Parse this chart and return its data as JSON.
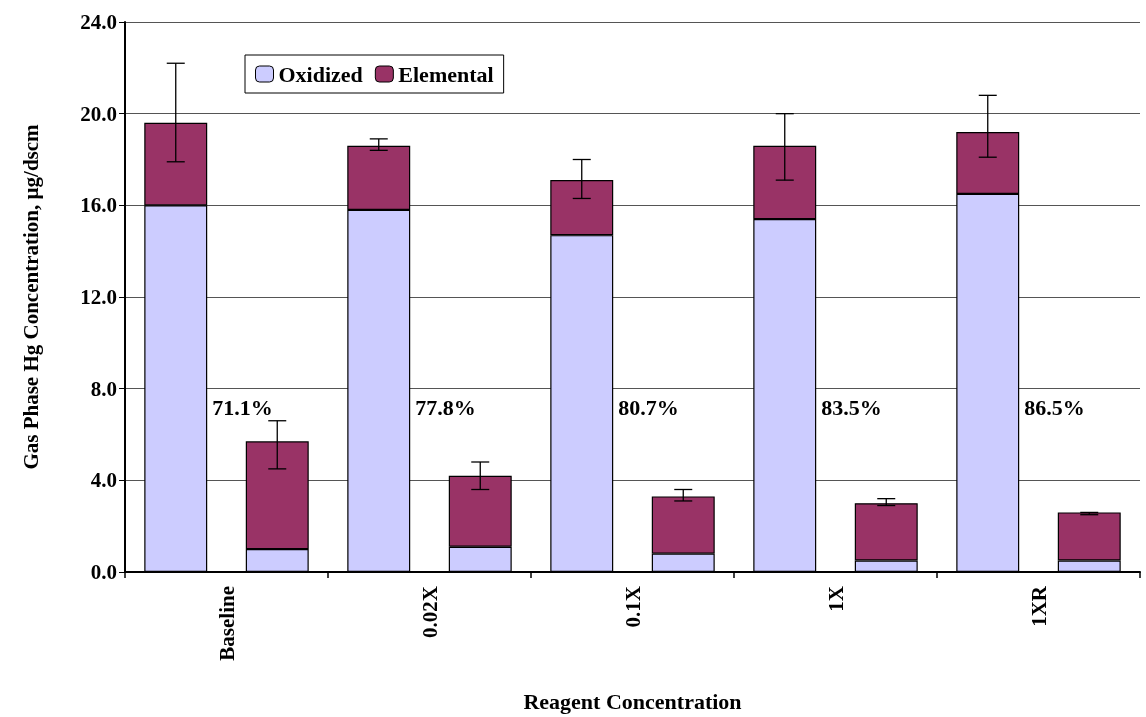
{
  "chart_data": {
    "type": "bar",
    "stacked": true,
    "xlabel": "Reagent Concentration",
    "ylabel": "Gas Phase Hg Concentration, µg/dscm",
    "categories": [
      "Baseline",
      null,
      "0.02X",
      null,
      "0.1X",
      null,
      "1X",
      null,
      "1XR",
      null
    ],
    "series": [
      {
        "name": "Oxidized",
        "color": "#ccccff",
        "values": [
          16.0,
          1.0,
          15.8,
          1.1,
          14.7,
          0.8,
          15.4,
          0.5,
          16.5,
          0.5
        ]
      },
      {
        "name": "Elemental",
        "color": "#993366",
        "values": [
          3.6,
          4.7,
          2.8,
          3.1,
          2.4,
          2.5,
          3.2,
          2.5,
          2.7,
          2.1
        ],
        "errors": [
          [
            17.9,
            22.2
          ],
          [
            4.5,
            6.6
          ],
          [
            18.4,
            18.9
          ],
          [
            3.6,
            4.8
          ],
          [
            16.3,
            18.0
          ],
          [
            3.1,
            3.6
          ],
          [
            17.1,
            20.0
          ],
          [
            2.9,
            3.2
          ],
          [
            18.1,
            20.8
          ],
          [
            2.5,
            2.6
          ]
        ]
      }
    ],
    "ylim": [
      0,
      24
    ],
    "yticks": [
      {
        "value": 0,
        "label": "0.0"
      },
      {
        "value": 4,
        "label": "4.0"
      },
      {
        "value": 8,
        "label": "8.0"
      },
      {
        "value": 12,
        "label": "12.0"
      },
      {
        "value": 16,
        "label": "16.0"
      },
      {
        "value": 20,
        "label": "20.0"
      },
      {
        "value": 24,
        "label": "24.0"
      }
    ],
    "grid": "y",
    "legend": "top left",
    "annotations": [
      "71.1%",
      "77.8%",
      "80.7%",
      "83.5%",
      "86.5%"
    ]
  }
}
